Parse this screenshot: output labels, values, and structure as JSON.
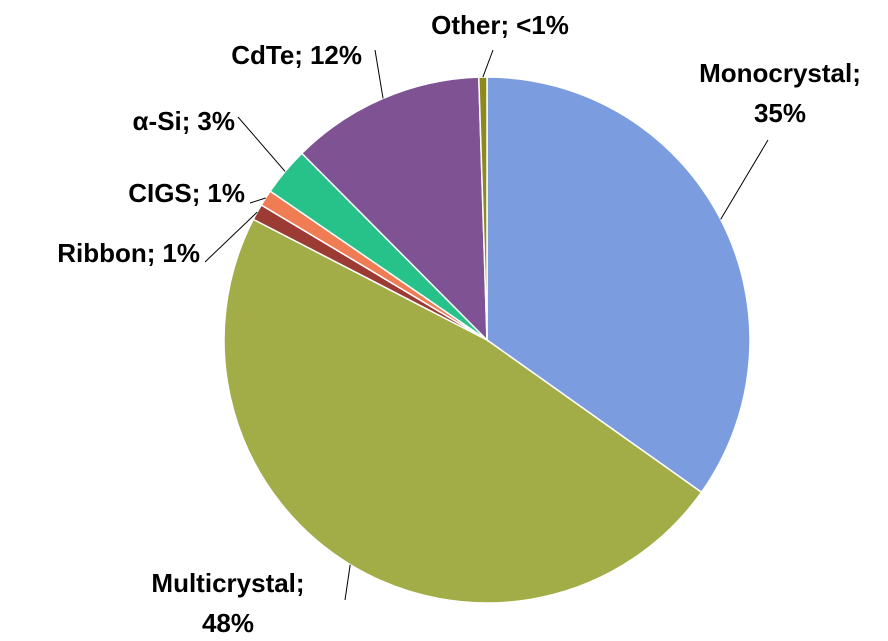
{
  "chart_data": {
    "type": "pie",
    "categories": [
      "Monocrystal;",
      "Multicrystal;",
      "Ribbon;",
      "CIGS;",
      "α-Si;",
      "CdTe;",
      "Other;"
    ],
    "values": [
      35,
      48,
      1,
      1,
      3,
      12,
      0.5
    ],
    "value_labels": [
      "35%",
      "48%",
      "1%",
      "1%",
      "3%",
      "12%",
      "<1%"
    ],
    "colors": [
      "#7b9de0",
      "#a2ad47",
      "#9b3b34",
      "#f07c54",
      "#26c28a",
      "#7f5293",
      "#8c8a1a"
    ]
  }
}
